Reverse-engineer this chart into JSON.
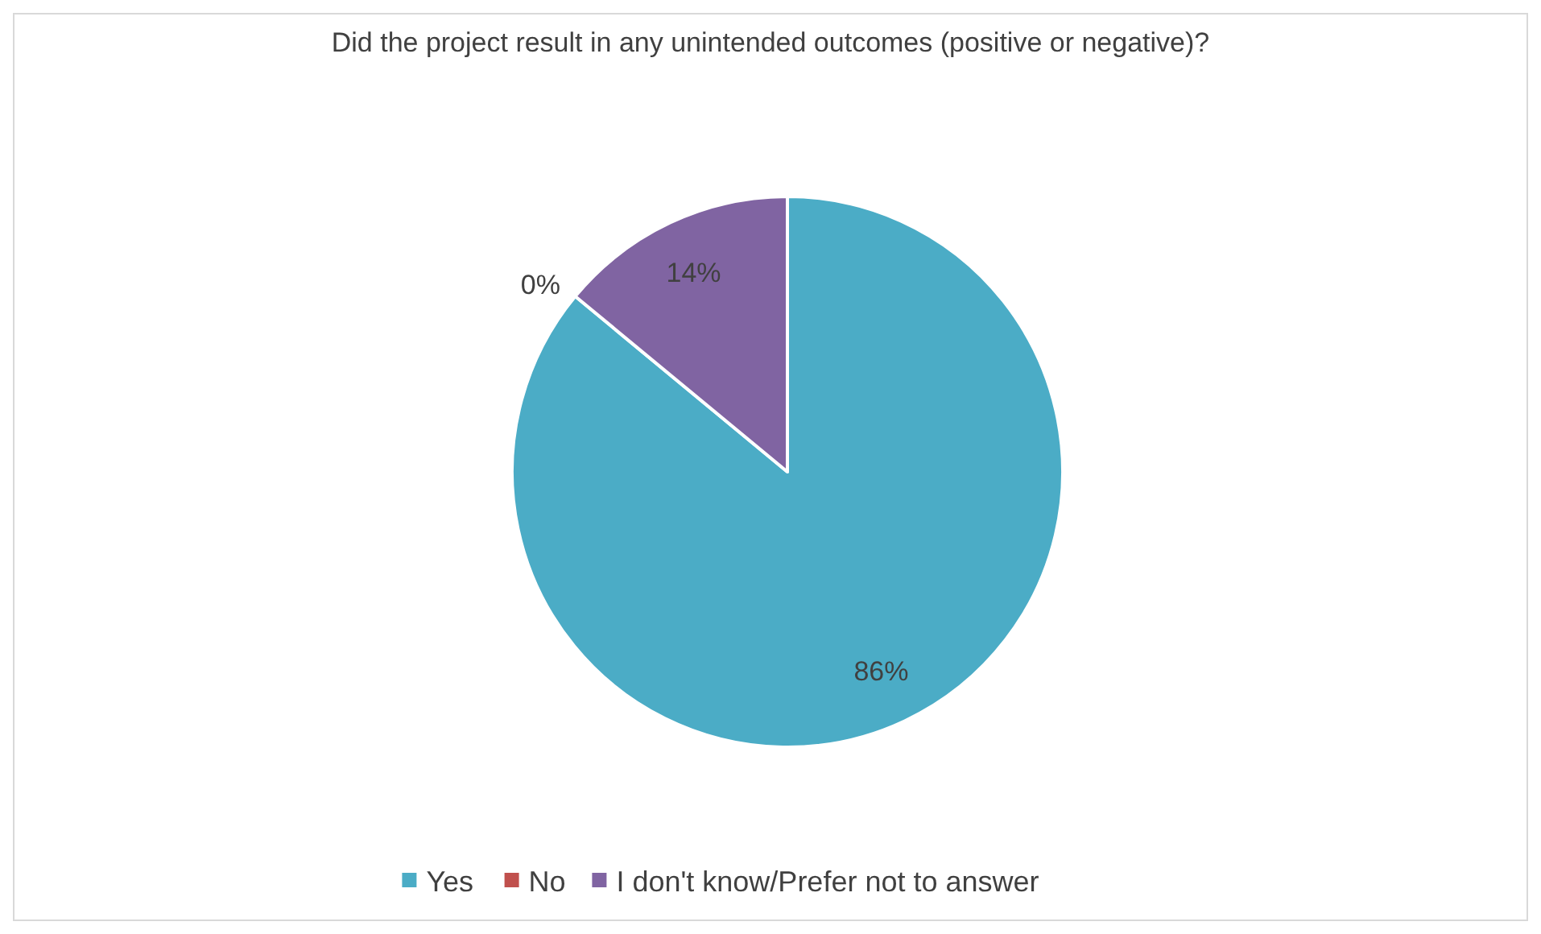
{
  "chart_data": {
    "type": "pie",
    "title": "Did the project result in any unintended outcomes (positive or negative)?",
    "categories": [
      "Yes",
      "No",
      "I don't know/Prefer not to answer"
    ],
    "values": [
      86,
      0,
      14
    ],
    "value_labels": [
      "86%",
      "0%",
      "14%"
    ],
    "colors": [
      "#4bacc6",
      "#c0504d",
      "#8064a2"
    ],
    "legend": "bottom"
  }
}
